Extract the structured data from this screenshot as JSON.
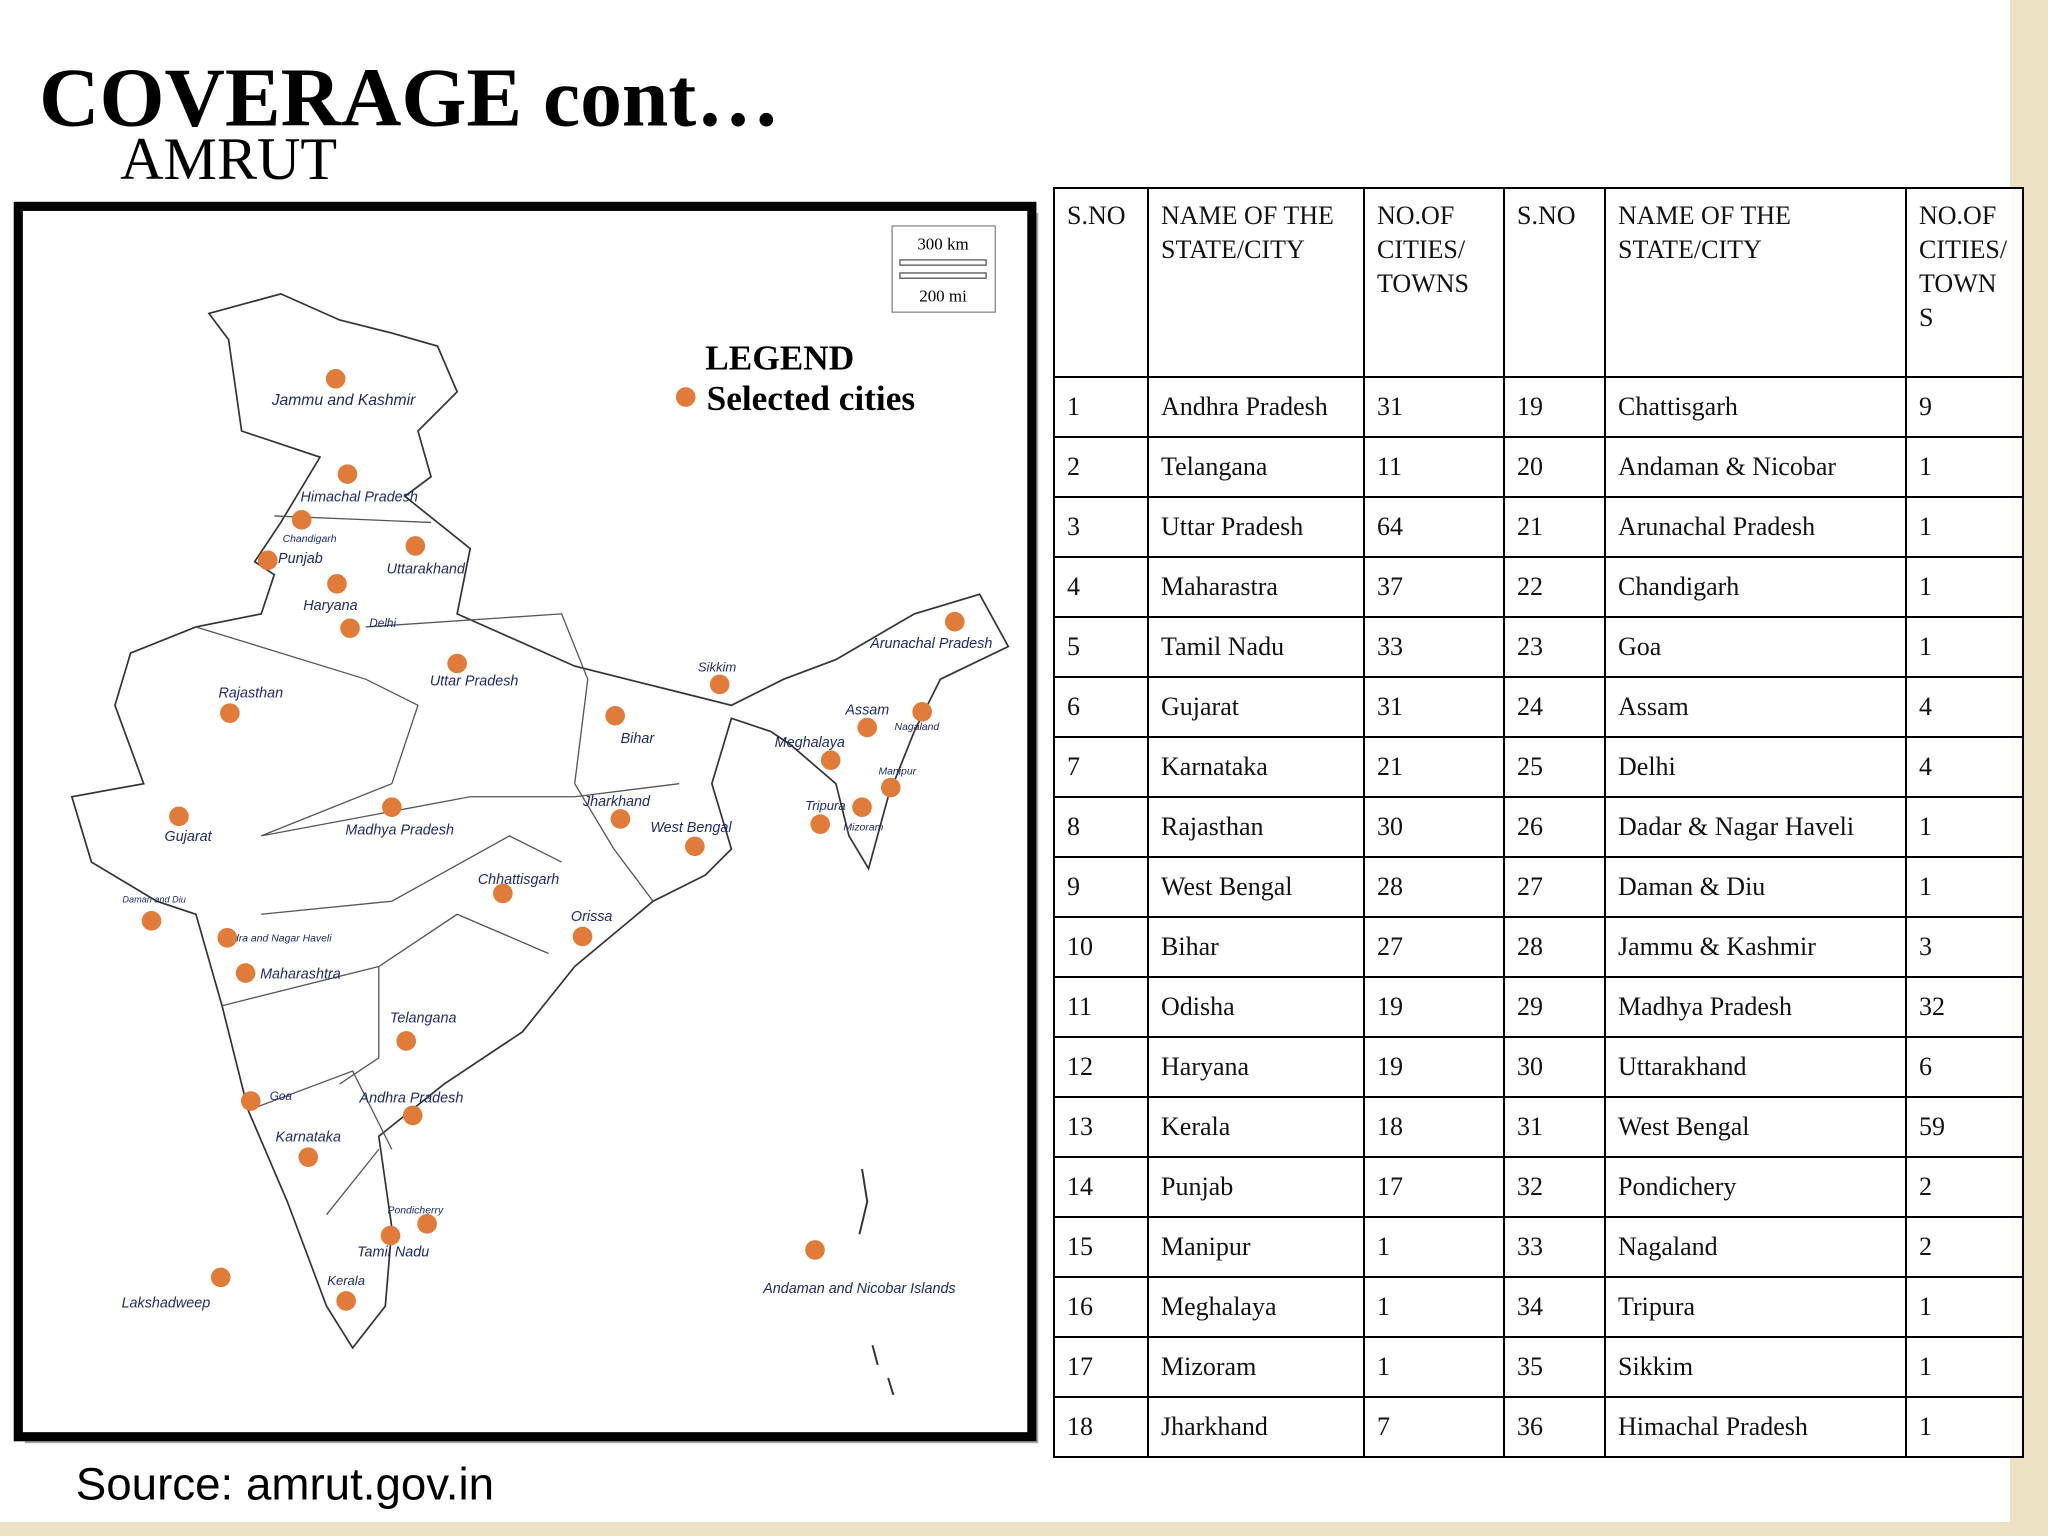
{
  "header": {
    "title": "COVERAGE cont…",
    "subtitle": "AMRUT"
  },
  "map": {
    "scale": [
      "300 km",
      "200 mi"
    ],
    "legend": {
      "title": "LEGEND",
      "item": "Selected cities"
    },
    "labels": [
      "Jammu and Kashmir",
      "Himachal Pradesh",
      "Chandigarh",
      "Punjab",
      "Uttarakhand",
      "Haryana",
      "Delhi",
      "Arunachal Pradesh",
      "Rajasthan",
      "Uttar Pradesh",
      "Sikkim",
      "Assam",
      "Nagaland",
      "Bihar",
      "Meghalaya",
      "Manipur",
      "Gujarat",
      "Madhya Pradesh",
      "Jharkhand",
      "West Bengal",
      "Tripura",
      "Mizoram",
      "Daman and Diu",
      "Chhattisgarh",
      "Orissa",
      "Dadra and Nagar Haveli",
      "Maharashtra",
      "Telangana",
      "Goa",
      "Andhra Pradesh",
      "Karnataka",
      "Pondicherry",
      "Tamil Nadu",
      "Kerala",
      "Lakshadweep",
      "Andaman and Nicobar Islands"
    ]
  },
  "table": {
    "columns": [
      "S.NO",
      "NAME OF THE STATE/CITY",
      "NO.OF CITIES/ TOWNS",
      "S.NO",
      "NAME OF THE STATE/CITY",
      "NO.OF CITIES/ TOWNS"
    ],
    "rows": [
      [
        1,
        "Andhra Pradesh",
        31,
        19,
        "Chattisgarh",
        9
      ],
      [
        2,
        "Telangana",
        11,
        20,
        "Andaman & Nicobar",
        1
      ],
      [
        3,
        "Uttar Pradesh",
        64,
        21,
        "Arunachal Pradesh",
        1
      ],
      [
        4,
        "Maharastra",
        37,
        22,
        "Chandigarh",
        1
      ],
      [
        5,
        "Tamil Nadu",
        33,
        23,
        "Goa",
        1
      ],
      [
        6,
        "Gujarat",
        31,
        24,
        "Assam",
        4
      ],
      [
        7,
        "Karnataka",
        21,
        25,
        "Delhi",
        4
      ],
      [
        8,
        "Rajasthan",
        30,
        26,
        "Dadar & Nagar Haveli",
        1
      ],
      [
        9,
        "West Bengal",
        28,
        27,
        "Daman & Diu",
        1
      ],
      [
        10,
        "Bihar",
        27,
        28,
        "Jammu & Kashmir",
        3
      ],
      [
        11,
        "Odisha",
        19,
        29,
        "Madhya Pradesh",
        32
      ],
      [
        12,
        "Haryana",
        19,
        30,
        "Uttarakhand",
        6
      ],
      [
        13,
        "Kerala",
        18,
        31,
        "West Bengal",
        59
      ],
      [
        14,
        "Punjab",
        17,
        32,
        "Pondichery",
        2
      ],
      [
        15,
        "Manipur",
        1,
        33,
        "Nagaland",
        2
      ],
      [
        16,
        "Meghalaya",
        1,
        34,
        "Tripura",
        1
      ],
      [
        17,
        "Mizoram",
        1,
        35,
        "Sikkim",
        1
      ],
      [
        18,
        "Jharkhand",
        7,
        36,
        "Himachal Pradesh",
        1
      ]
    ]
  },
  "footer": {
    "source": "Source: amrut.gov.in"
  }
}
